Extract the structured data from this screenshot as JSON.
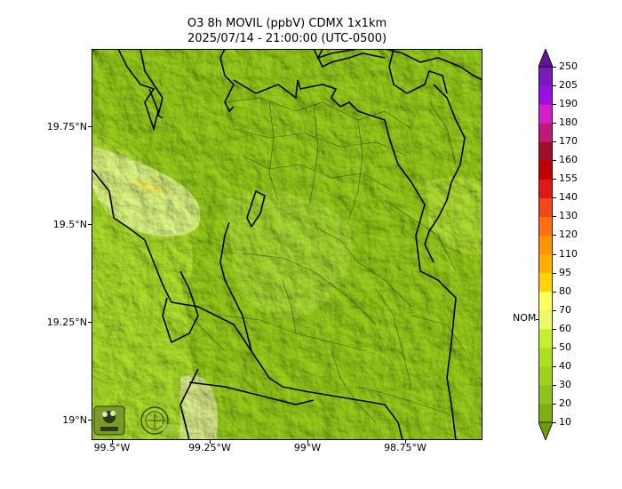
{
  "title": {
    "line1": "O3 8h MOVIL (ppbV) CDMX 1x1km",
    "line2": "2025/07/14 - 21:00:00 (UTC-0500)"
  },
  "map": {
    "lat_labels": [
      "19.75°N",
      "19.5°N",
      "19.25°N",
      "19°N"
    ],
    "lon_labels": [
      "99.5°W",
      "99.25°W",
      "99°W",
      "98.75°W"
    ],
    "base_color": "#8fc21a",
    "boundary_color": "#000000"
  },
  "colorbar": {
    "levels": [
      "10",
      "20",
      "30",
      "40",
      "50",
      "60",
      "70",
      "80",
      "95",
      "110",
      "120",
      "130",
      "140",
      "155",
      "160",
      "170",
      "180",
      "190",
      "205",
      "250"
    ],
    "colors": [
      "#6f9a0a",
      "#7fae10",
      "#8fc21a",
      "#9fd01c",
      "#aee020",
      "#c6f02e",
      "#ecfa6a",
      "#ffff5e",
      "#ffd400",
      "#ffb000",
      "#ff9400",
      "#ff6e10",
      "#f0481a",
      "#e01818",
      "#c00000",
      "#a0102a",
      "#c0187a",
      "#d420c8",
      "#9a10e0",
      "#7a1ab8",
      "#5a1a98"
    ],
    "nom_label": "NOM"
  },
  "logos": {
    "left_name": "sedema-logo",
    "right_name": "cdmx-seal"
  }
}
